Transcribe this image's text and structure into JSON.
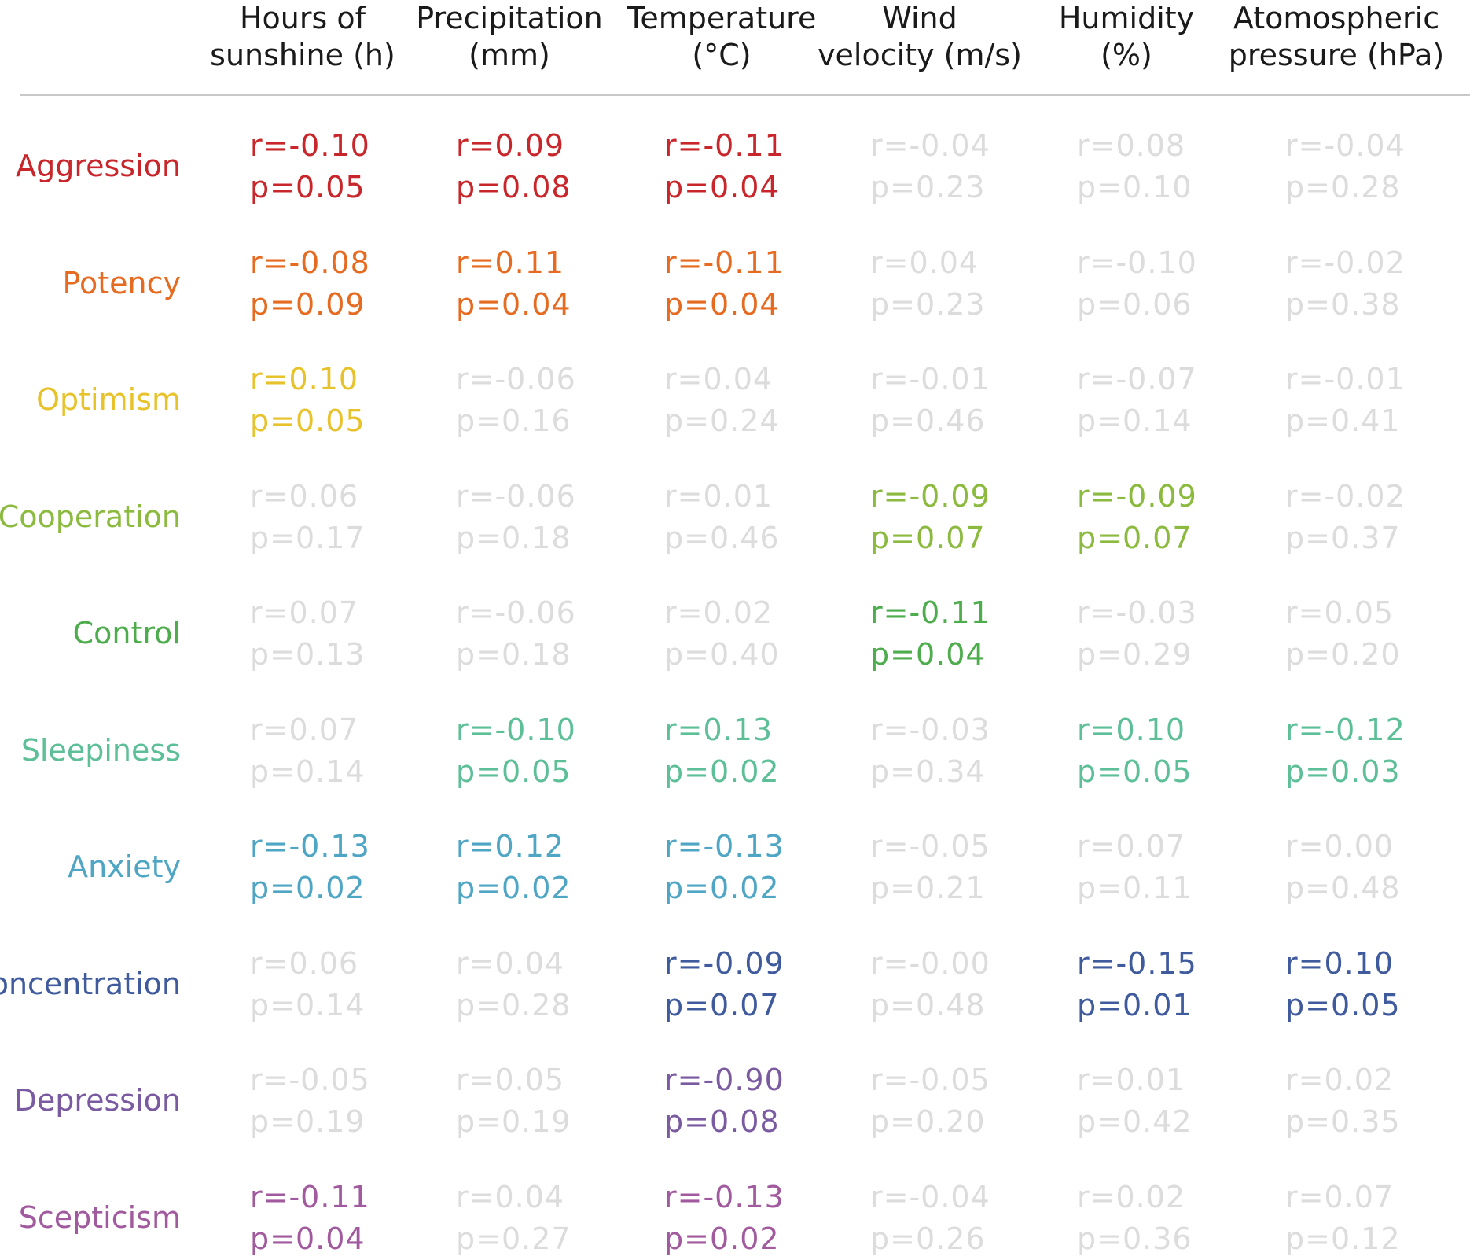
{
  "chart_data": {
    "type": "table",
    "columns": [
      {
        "line1": "Hours of",
        "line2": "sunshine (h)"
      },
      {
        "line1": "Precipitation",
        "line2": "(mm)"
      },
      {
        "line1": "Temperature",
        "line2": "(°C)"
      },
      {
        "line1": "Wind",
        "line2": "velocity (m/s)"
      },
      {
        "line1": "Humidity",
        "line2": "(%)"
      },
      {
        "line1": "Atomospheric",
        "line2": "pressure (hPa)"
      }
    ],
    "muted_color": "#dcdcdc",
    "rows": [
      {
        "label": "Aggression",
        "color": "#c8262a",
        "cells": [
          {
            "r": "r=-0.10",
            "p": "p=0.05",
            "significant": true
          },
          {
            "r": "r=0.09",
            "p": "p=0.08",
            "significant": true
          },
          {
            "r": "r=-0.11",
            "p": "p=0.04",
            "significant": true
          },
          {
            "r": "r=-0.04",
            "p": "p=0.23",
            "significant": false
          },
          {
            "r": "r=0.08",
            "p": "p=0.10",
            "significant": false
          },
          {
            "r": "r=-0.04",
            "p": "p=0.28",
            "significant": false
          }
        ]
      },
      {
        "label": "Potency",
        "color": "#e66a1f",
        "cells": [
          {
            "r": "r=-0.08",
            "p": "p=0.09",
            "significant": true
          },
          {
            "r": "r=0.11",
            "p": "p=0.04",
            "significant": true
          },
          {
            "r": "r=-0.11",
            "p": "p=0.04",
            "significant": true
          },
          {
            "r": "r=0.04",
            "p": "p=0.23",
            "significant": false
          },
          {
            "r": "r=-0.10",
            "p": "p=0.06",
            "significant": false
          },
          {
            "r": "r=-0.02",
            "p": "p=0.38",
            "significant": false
          }
        ]
      },
      {
        "label": "Optimism",
        "color": "#e8c22a",
        "cells": [
          {
            "r": "r=0.10",
            "p": "p=0.05",
            "significant": true
          },
          {
            "r": "r=-0.06",
            "p": "p=0.16",
            "significant": false
          },
          {
            "r": "r=0.04",
            "p": "p=0.24",
            "significant": false
          },
          {
            "r": "r=-0.01",
            "p": "p=0.46",
            "significant": false
          },
          {
            "r": "r=-0.07",
            "p": "p=0.14",
            "significant": false
          },
          {
            "r": "r=-0.01",
            "p": "p=0.41",
            "significant": false
          }
        ]
      },
      {
        "label": "Cooperation",
        "color": "#8bba3e",
        "cells": [
          {
            "r": "r=0.06",
            "p": "p=0.17",
            "significant": false
          },
          {
            "r": "r=-0.06",
            "p": "p=0.18",
            "significant": false
          },
          {
            "r": "r=0.01",
            "p": "p=0.46",
            "significant": false
          },
          {
            "r": "r=-0.09",
            "p": "p=0.07",
            "significant": true
          },
          {
            "r": "r=-0.09",
            "p": "p=0.07",
            "significant": true
          },
          {
            "r": "r=-0.02",
            "p": "p=0.37",
            "significant": false
          }
        ]
      },
      {
        "label": "Control",
        "color": "#4dac4c",
        "cells": [
          {
            "r": "r=0.07",
            "p": "p=0.13",
            "significant": false
          },
          {
            "r": "r=-0.06",
            "p": "p=0.18",
            "significant": false
          },
          {
            "r": "r=0.02",
            "p": "p=0.40",
            "significant": false
          },
          {
            "r": "r=-0.11",
            "p": "p=0.04",
            "significant": true
          },
          {
            "r": "r=-0.03",
            "p": "p=0.29",
            "significant": false
          },
          {
            "r": "r=0.05",
            "p": "p=0.20",
            "significant": false
          }
        ]
      },
      {
        "label": "Sleepiness",
        "color": "#5cbf98",
        "cells": [
          {
            "r": "r=0.07",
            "p": "p=0.14",
            "significant": false
          },
          {
            "r": "r=-0.10",
            "p": "p=0.05",
            "significant": true
          },
          {
            "r": "r=0.13",
            "p": "p=0.02",
            "significant": true
          },
          {
            "r": "r=-0.03",
            "p": "p=0.34",
            "significant": false
          },
          {
            "r": "r=0.10",
            "p": "p=0.05",
            "significant": true
          },
          {
            "r": "r=-0.12",
            "p": "p=0.03",
            "significant": true
          }
        ]
      },
      {
        "label": "Anxiety",
        "color": "#4ea6c4",
        "cells": [
          {
            "r": "r=-0.13",
            "p": "p=0.02",
            "significant": true
          },
          {
            "r": "r=0.12",
            "p": "p=0.02",
            "significant": true
          },
          {
            "r": "r=-0.13",
            "p": "p=0.02",
            "significant": true
          },
          {
            "r": "r=-0.05",
            "p": "p=0.21",
            "significant": false
          },
          {
            "r": "r=0.07",
            "p": "p=0.11",
            "significant": false
          },
          {
            "r": "r=0.00",
            "p": "p=0.48",
            "significant": false
          }
        ]
      },
      {
        "label": "Concentration",
        "color": "#3f5b9e",
        "cells": [
          {
            "r": "r=0.06",
            "p": "p=0.14",
            "significant": false
          },
          {
            "r": "r=0.04",
            "p": "p=0.28",
            "significant": false
          },
          {
            "r": "r=-0.09",
            "p": "p=0.07",
            "significant": true
          },
          {
            "r": "r=-0.00",
            "p": "p=0.48",
            "significant": false
          },
          {
            "r": "r=-0.15",
            "p": "p=0.01",
            "significant": true
          },
          {
            "r": "r=0.10",
            "p": "p=0.05",
            "significant": true
          }
        ]
      },
      {
        "label": "Depression",
        "color": "#7a5aa0",
        "cells": [
          {
            "r": "r=-0.05",
            "p": "p=0.19",
            "significant": false
          },
          {
            "r": "r=0.05",
            "p": "p=0.19",
            "significant": false
          },
          {
            "r": "r=-0.90",
            "p": "p=0.08",
            "significant": true
          },
          {
            "r": "r=-0.05",
            "p": "p=0.20",
            "significant": false
          },
          {
            "r": "r=0.01",
            "p": "p=0.42",
            "significant": false
          },
          {
            "r": "r=0.02",
            "p": "p=0.35",
            "significant": false
          }
        ]
      },
      {
        "label": "Scepticism",
        "color": "#a25a9e",
        "cells": [
          {
            "r": "r=-0.11",
            "p": "p=0.04",
            "significant": true
          },
          {
            "r": "r=0.04",
            "p": "p=0.27",
            "significant": false
          },
          {
            "r": "r=-0.13",
            "p": "p=0.02",
            "significant": true
          },
          {
            "r": "r=-0.04",
            "p": "p=0.26",
            "significant": false
          },
          {
            "r": "r=0.02",
            "p": "p=0.36",
            "significant": false
          },
          {
            "r": "r=0.07",
            "p": "p=0.12",
            "significant": false
          }
        ]
      }
    ]
  }
}
